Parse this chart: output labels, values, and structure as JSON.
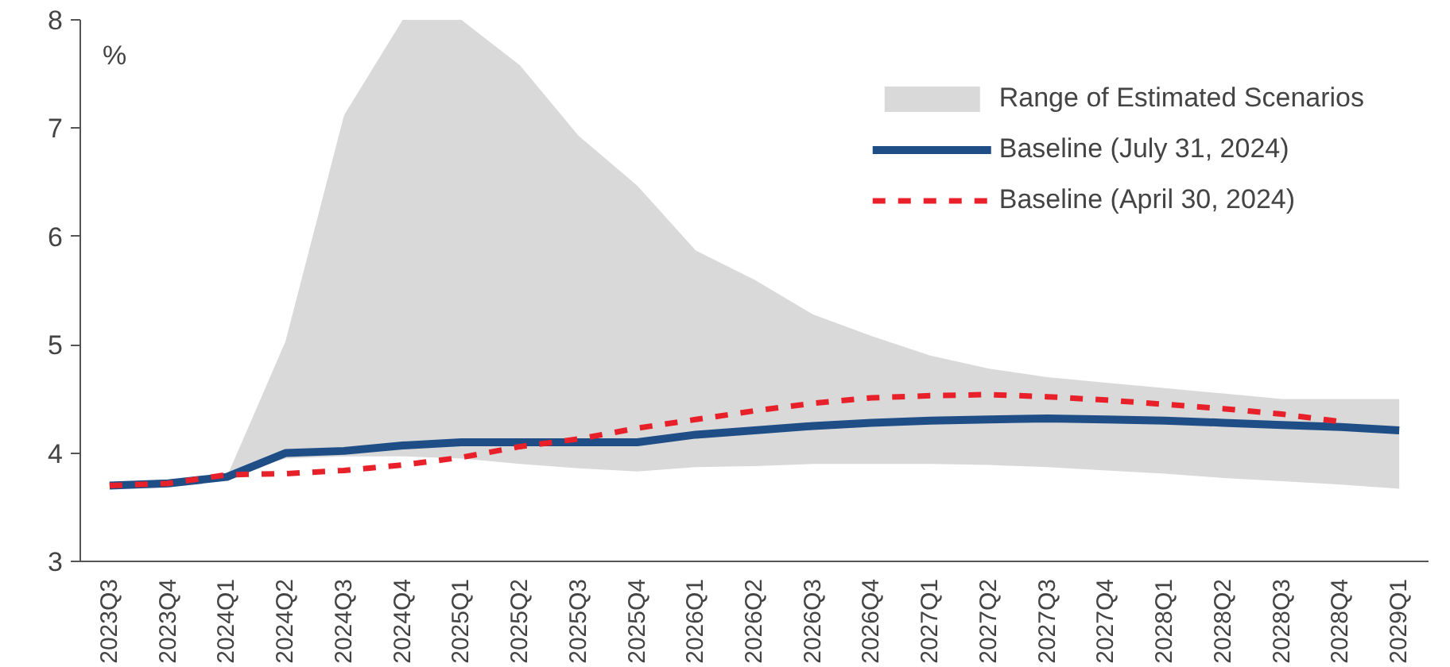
{
  "chart_data": {
    "type": "line",
    "ylabel": "%",
    "categories": [
      "2023Q3",
      "2023Q4",
      "2024Q1",
      "2024Q2",
      "2024Q3",
      "2024Q4",
      "2025Q1",
      "2025Q2",
      "2025Q3",
      "2025Q4",
      "2026Q1",
      "2026Q2",
      "2026Q3",
      "2026Q4",
      "2027Q1",
      "2027Q2",
      "2027Q3",
      "2027Q4",
      "2028Q1",
      "2028Q2",
      "2028Q3",
      "2028Q4",
      "2029Q1"
    ],
    "series": [
      {
        "name": "Range of Estimated Scenarios",
        "type": "area",
        "color": "#d9d9d9",
        "values": [
          null,
          null,
          null,
          null,
          null,
          null,
          null,
          null,
          null,
          null,
          null,
          null,
          null,
          null,
          null,
          null,
          null,
          null,
          null,
          null,
          null,
          null,
          null
        ],
        "lower": [
          3.7,
          3.72,
          3.78,
          3.95,
          3.97,
          3.97,
          3.95,
          3.9,
          3.86,
          3.83,
          3.87,
          3.88,
          3.9,
          3.9,
          3.9,
          3.89,
          3.87,
          3.84,
          3.81,
          3.77,
          3.74,
          3.71,
          3.67
        ],
        "upper": [
          3.7,
          3.72,
          3.78,
          5.03,
          7.12,
          8.0,
          8.0,
          7.58,
          6.93,
          6.47,
          5.87,
          5.6,
          5.28,
          5.08,
          4.9,
          4.78,
          4.7,
          4.65,
          4.6,
          4.55,
          4.5,
          4.5,
          4.5
        ]
      },
      {
        "name": "Baseline (July 31, 2024)",
        "color": "#1f4e87",
        "line_style": "solid",
        "values": [
          3.7,
          3.72,
          3.78,
          4.0,
          4.02,
          4.07,
          4.1,
          4.1,
          4.1,
          4.1,
          4.17,
          4.21,
          4.25,
          4.28,
          4.3,
          4.31,
          4.32,
          4.31,
          4.3,
          4.28,
          4.26,
          4.24,
          4.21
        ]
      },
      {
        "name": "Baseline (April 30, 2024)",
        "color": "#e8202a",
        "line_style": "dashed",
        "values": [
          3.7,
          3.72,
          3.8,
          3.81,
          3.84,
          3.89,
          3.96,
          4.06,
          4.13,
          4.23,
          4.31,
          4.39,
          4.46,
          4.51,
          4.53,
          4.54,
          4.52,
          4.49,
          4.45,
          4.41,
          4.36,
          4.29,
          null
        ]
      }
    ],
    "ylim": [
      3,
      8
    ],
    "yticks": [
      3,
      4,
      5,
      6,
      7,
      8
    ],
    "grid": false,
    "legend": "top right",
    "marker": "none"
  }
}
